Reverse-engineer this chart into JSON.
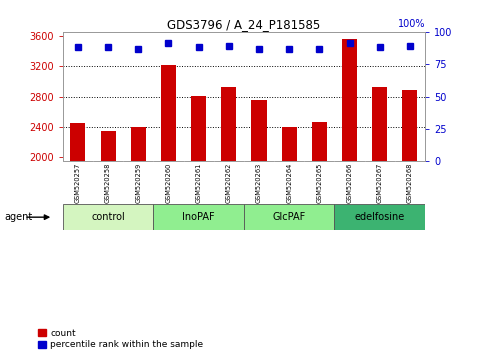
{
  "title": "GDS3796 / A_24_P181585",
  "samples": [
    "GSM520257",
    "GSM520258",
    "GSM520259",
    "GSM520260",
    "GSM520261",
    "GSM520262",
    "GSM520263",
    "GSM520264",
    "GSM520265",
    "GSM520266",
    "GSM520267",
    "GSM520268"
  ],
  "counts": [
    2450,
    2340,
    2400,
    3210,
    2810,
    2920,
    2760,
    2405,
    2460,
    3560,
    2930,
    2890
  ],
  "percentiles": [
    88,
    88,
    87,
    91,
    88,
    89,
    87,
    87,
    87,
    91,
    88,
    89
  ],
  "ylim_left": [
    1950,
    3650
  ],
  "ylim_right": [
    0,
    100
  ],
  "yticks_left": [
    2000,
    2400,
    2800,
    3200,
    3600
  ],
  "yticks_right": [
    0,
    25,
    50,
    75,
    100
  ],
  "groups": [
    {
      "label": "control",
      "start": 0,
      "end": 3,
      "color": "#d4f5c0"
    },
    {
      "label": "InoPAF",
      "start": 3,
      "end": 6,
      "color": "#90ee90"
    },
    {
      "label": "GlcPAF",
      "start": 6,
      "end": 9,
      "color": "#90ee90"
    },
    {
      "label": "edelfosine",
      "start": 9,
      "end": 12,
      "color": "#3cb371"
    }
  ],
  "bar_color": "#cc0000",
  "dot_color": "#0000cc",
  "bar_width": 0.5,
  "background_color": "#ffffff",
  "sample_box_color": "#cccccc",
  "grid_color": "#000000",
  "legend_count_color": "#cc0000",
  "legend_dot_color": "#0000cc",
  "right_axis_label": "100%",
  "grid_yticks": [
    2400,
    2800,
    3200
  ]
}
